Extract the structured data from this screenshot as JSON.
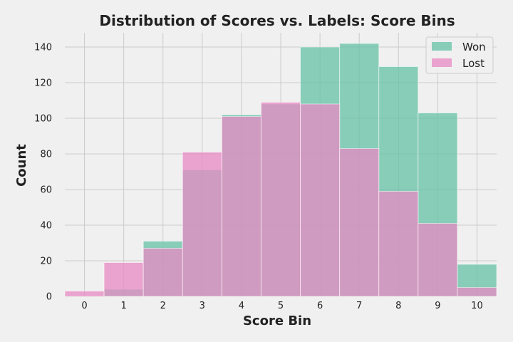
{
  "chart_data": {
    "type": "bar",
    "title": "Distribution of Scores vs. Labels: Score Bins",
    "xlabel": "Score Bin",
    "ylabel": "Count",
    "categories": [
      "0",
      "1",
      "2",
      "3",
      "4",
      "5",
      "6",
      "7",
      "8",
      "9",
      "10"
    ],
    "ylim": [
      0,
      148
    ],
    "yticks": [
      0,
      20,
      40,
      60,
      80,
      100,
      120,
      140
    ],
    "grid": true,
    "legend_position": "top-right",
    "series": [
      {
        "name": "Won",
        "color": "#66c2a5",
        "values": [
          0,
          4,
          31,
          71,
          102,
          108,
          140,
          142,
          129,
          103,
          18
        ]
      },
      {
        "name": "Lost",
        "color": "#e78ac3",
        "values": [
          3,
          19,
          27,
          81,
          101,
          109,
          108,
          83,
          59,
          41,
          5
        ]
      }
    ]
  }
}
